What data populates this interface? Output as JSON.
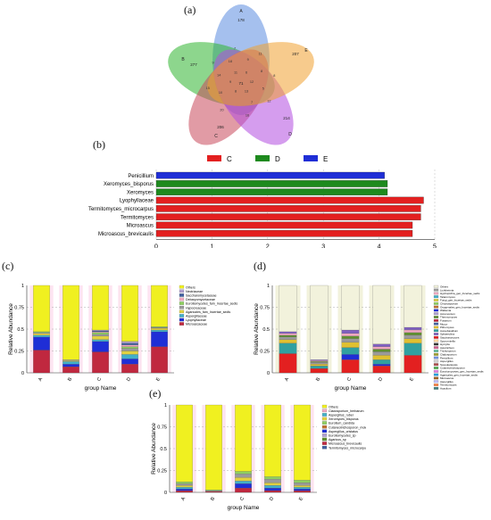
{
  "panels": {
    "a": "(a)",
    "b": "(b)",
    "c": "(c)",
    "d": "(d)",
    "e": "(e)"
  },
  "venn": {
    "sets": [
      {
        "name": "A",
        "unique": "178",
        "color": "#5b8de0"
      },
      {
        "name": "B",
        "unique": "277",
        "color": "#2fb52f"
      },
      {
        "name": "C",
        "unique": "206",
        "color": "#c9485b"
      },
      {
        "name": "D",
        "unique": "214",
        "color": "#b24de0"
      },
      {
        "name": "E",
        "unique": "207",
        "color": "#f0a030"
      }
    ],
    "overlap_numbers": [
      "12",
      "13",
      "8",
      "9",
      "11",
      "6",
      "5",
      "7",
      "71",
      "10",
      "14",
      "18",
      "9",
      "8",
      "12",
      "16",
      "20",
      "15",
      "9",
      "7",
      "11",
      "8"
    ]
  },
  "chart_data": [
    {
      "type": "bar",
      "orientation": "horizontal",
      "categories": [
        "Penicillium",
        "Xeromyces_bisporus",
        "Xeromyces",
        "Lyophyllaceae",
        "Termitomyces_microcarpus",
        "Termitomyces",
        "Microascus",
        "Microascus_brevicaulis"
      ],
      "values": [
        4.1,
        4.15,
        4.15,
        4.8,
        4.75,
        4.75,
        4.6,
        4.6
      ],
      "groups": [
        "E",
        "D",
        "D",
        "C",
        "C",
        "C",
        "C",
        "C"
      ],
      "legend": [
        {
          "name": "C",
          "color": "#e32020"
        },
        {
          "name": "D",
          "color": "#1e8a1e"
        },
        {
          "name": "E",
          "color": "#1f2ed6"
        }
      ],
      "xlabel": "LDA SCORE (log 10)",
      "xlim": [
        0,
        5
      ],
      "xticks": [
        "0",
        "1",
        "2",
        "3",
        "4",
        "5"
      ],
      "legend_position": "top"
    },
    {
      "type": "bar",
      "stacked": true,
      "categories": [
        "A",
        "B",
        "C",
        "D",
        "E"
      ],
      "xlabel": "group Name",
      "ylabel": "Relative Abundance",
      "ylim": [
        0,
        1
      ],
      "yticks": [
        "0",
        "0.25",
        "0.5",
        "0.75",
        "1"
      ],
      "series": [
        {
          "name": "Microascaceae",
          "color": "#c0283f",
          "values": [
            0.26,
            0.07,
            0.24,
            0.1,
            0.3
          ]
        },
        {
          "name": "Lyophyllaceae",
          "color": "#1f2ed6",
          "values": [
            0.15,
            0.03,
            0.12,
            0.06,
            0.17
          ]
        },
        {
          "name": "Aspergillaceae",
          "color": "#42b0c8",
          "values": [
            0.02,
            0.03,
            0.02,
            0.05,
            0.02
          ]
        },
        {
          "name": "Agaricales_fam_Incertae_sedis",
          "color": "#e0d040",
          "values": [
            0.02,
            0.01,
            0.04,
            0.04,
            0.02
          ]
        },
        {
          "name": "Hypocreaceae",
          "color": "#9a9a9a",
          "values": [
            0.01,
            0.01,
            0.02,
            0.03,
            0.01
          ]
        },
        {
          "name": "Eurotiomycetes_fam_Incertae_sedis",
          "color": "#8fcf60",
          "values": [
            0.01,
            0.0,
            0.02,
            0.02,
            0.01
          ]
        },
        {
          "name": "Debaryomycetaceae",
          "color": "#f0a8c0",
          "values": [
            0.0,
            0.0,
            0.01,
            0.02,
            0.0
          ]
        },
        {
          "name": "Saccharomycetaceae",
          "color": "#4060a0",
          "values": [
            0.0,
            0.0,
            0.01,
            0.02,
            0.0
          ]
        },
        {
          "name": "Nectriaceae",
          "color": "#b0a0d0",
          "values": [
            0.0,
            0.0,
            0.01,
            0.02,
            0.0
          ]
        },
        {
          "name": "Others",
          "color": "#f0f020",
          "values": [
            0.53,
            0.85,
            0.51,
            0.64,
            0.47
          ]
        }
      ],
      "legend_position": "right"
    },
    {
      "type": "bar",
      "stacked": true,
      "categories": [
        "A",
        "B",
        "C",
        "D",
        "E"
      ],
      "xlabel": "group Name",
      "ylabel": "Relative Abundance",
      "ylim": [
        0,
        1
      ],
      "yticks": [
        "0",
        "0.25",
        "0.5",
        "0.75",
        "1"
      ],
      "series": [
        {
          "name": "Acaulium",
          "color": "#e32020",
          "values": [
            0.22,
            0.05,
            0.15,
            0.08,
            0.2
          ]
        },
        {
          "name": "Termitomyces",
          "color": "#1f2ed6",
          "values": [
            0.0,
            0.0,
            0.06,
            0.02,
            0.0
          ]
        },
        {
          "name": "Microascus",
          "color": "#30a0a0",
          "values": [
            0.12,
            0.03,
            0.08,
            0.05,
            0.14
          ]
        },
        {
          "name": "Aspergillus",
          "color": "#e0c030",
          "values": [
            0.04,
            0.02,
            0.06,
            0.05,
            0.05
          ]
        },
        {
          "name": "Scopulariopsis",
          "color": "#9a9a9a",
          "values": [
            0.03,
            0.02,
            0.04,
            0.04,
            0.04
          ]
        },
        {
          "name": "Penicillium",
          "color": "#5f8f30",
          "values": [
            0.02,
            0.01,
            0.03,
            0.03,
            0.03
          ]
        },
        {
          "name": "Candida",
          "color": "#f0a8c0",
          "values": [
            0.02,
            0.01,
            0.03,
            0.03,
            0.03
          ]
        },
        {
          "name": "Trichoderma",
          "color": "#8060c0",
          "values": [
            0.02,
            0.01,
            0.04,
            0.03,
            0.03
          ]
        },
        {
          "name": "Others",
          "color": "#f2f2dc",
          "values": [
            0.53,
            0.85,
            0.51,
            0.67,
            0.48
          ]
        }
      ],
      "legend_entries": [
        "Others",
        "Lichtheimia",
        "Hyphopichia_gen_Incertae_sedis",
        "Talaromyces",
        "Fungi_gen_Incertae_sedis",
        "Chrysosporium",
        "Onygenales_gen_Incertae_sedis",
        "Wallemia",
        "Acremonium",
        "Thermomyces",
        "Fusarium",
        "Mucor",
        "Pithomyces",
        "Aureobasidium",
        "Sphaerulina",
        "Saccharomyces",
        "Sporormiella",
        "Hyrcylia",
        "Apiotrichum",
        "Trichosporon",
        "Cladosporium",
        "Penicillium",
        "Aspergillus",
        "Scopulariopsis",
        "Cutaneotrichosporon",
        "Eurotiomycetes_gen_Incertae_sedis",
        "Agaricales_gen_Incertae_sedis",
        "Microascus",
        "Aspergillus",
        "Termitomyces",
        "Acaulium"
      ],
      "legend_position": "right"
    },
    {
      "type": "bar",
      "stacked": true,
      "categories": [
        "A",
        "B",
        "C",
        "D",
        "E"
      ],
      "xlabel": "group Name",
      "ylabel": "Relative Abundance",
      "ylim": [
        0,
        1
      ],
      "yticks": [
        "0",
        "0.25",
        "0.5",
        "0.75",
        "1"
      ],
      "series": [
        {
          "name": "Termitomyces_microcarpus",
          "color": "#c0283f",
          "values": [
            0.02,
            0.01,
            0.05,
            0.02,
            0.02
          ]
        },
        {
          "name": "Microascus_brevicaulis",
          "color": "#1f2ed6",
          "values": [
            0.02,
            0.0,
            0.05,
            0.03,
            0.02
          ]
        },
        {
          "name": "Agaricus_sp",
          "color": "#42b0c8",
          "values": [
            0.02,
            0.0,
            0.03,
            0.03,
            0.02
          ]
        },
        {
          "name": "Eurotiomycetes_sp",
          "color": "#e0d040",
          "values": [
            0.02,
            0.0,
            0.04,
            0.03,
            0.02
          ]
        },
        {
          "name": "Aspergillus_cristatus",
          "color": "#9a9a9a",
          "values": [
            0.02,
            0.01,
            0.04,
            0.04,
            0.03
          ]
        },
        {
          "name": "Xeromyces_bisporus",
          "color": "#8fcf60",
          "values": [
            0.02,
            0.01,
            0.03,
            0.03,
            0.03
          ]
        },
        {
          "name": "Others",
          "color": "#f0f020",
          "values": [
            0.88,
            0.97,
            0.76,
            0.82,
            0.86
          ]
        }
      ],
      "legend_entries": [
        "Others",
        "Cladosporium_herbarum",
        "Aspergillus_ruber",
        "Xeromyces_bisporus",
        "Eurotium_candida",
        "Cutaneotrichosporon_moleni",
        "Aspergillus_cristatus",
        "Eurotiomycetes_sp",
        "Agaricus_sp",
        "Microascus_brevicaulis",
        "Termitomyces_microcarpus"
      ],
      "legend_position": "right"
    }
  ]
}
